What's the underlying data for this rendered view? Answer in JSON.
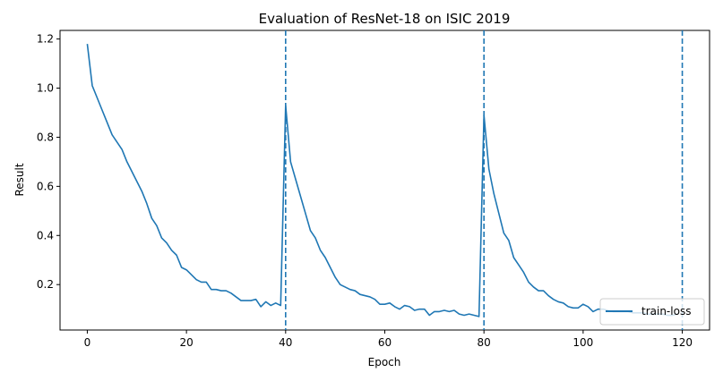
{
  "chart_data": {
    "type": "line",
    "title": "Evaluation of ResNet-18 on ISIC 2019",
    "xlabel": "Epoch",
    "ylabel": "Result",
    "xlim": [
      -5.5,
      125.5
    ],
    "ylim": [
      0.015,
      1.235
    ],
    "xticks": [
      0,
      20,
      40,
      60,
      80,
      100,
      120
    ],
    "yticks": [
      0.2,
      0.4,
      0.6,
      0.8,
      1.0,
      1.2
    ],
    "ytick_labels": [
      "0.2",
      "0.4",
      "0.6",
      "0.8",
      "1.0",
      "1.2"
    ],
    "grid": false,
    "legend_position": "lower-right",
    "vlines": [
      40,
      80,
      120
    ],
    "series": [
      {
        "name": "train-loss",
        "color": "#1f77b4",
        "x": [
          0,
          1,
          2,
          3,
          4,
          5,
          6,
          7,
          8,
          9,
          10,
          11,
          12,
          13,
          14,
          15,
          16,
          17,
          18,
          19,
          20,
          21,
          22,
          23,
          24,
          25,
          26,
          27,
          28,
          29,
          30,
          31,
          32,
          33,
          34,
          35,
          36,
          37,
          38,
          39,
          40,
          41,
          42,
          43,
          44,
          45,
          46,
          47,
          48,
          49,
          50,
          51,
          52,
          53,
          54,
          55,
          56,
          57,
          58,
          59,
          60,
          61,
          62,
          63,
          64,
          65,
          66,
          67,
          68,
          69,
          70,
          71,
          72,
          73,
          74,
          75,
          76,
          77,
          78,
          79,
          80,
          81,
          82,
          83,
          84,
          85,
          86,
          87,
          88,
          89,
          90,
          91,
          92,
          93,
          94,
          95,
          96,
          97,
          98,
          99,
          100,
          101,
          102,
          103,
          104,
          105,
          106,
          107,
          108,
          109,
          110,
          111,
          112,
          113,
          114,
          115,
          116,
          117,
          118,
          119
        ],
        "values": [
          1.18,
          1.01,
          0.96,
          0.91,
          0.86,
          0.81,
          0.78,
          0.75,
          0.7,
          0.66,
          0.62,
          0.58,
          0.53,
          0.47,
          0.44,
          0.39,
          0.37,
          0.34,
          0.32,
          0.27,
          0.26,
          0.24,
          0.22,
          0.21,
          0.21,
          0.18,
          0.18,
          0.175,
          0.175,
          0.165,
          0.15,
          0.135,
          0.135,
          0.135,
          0.14,
          0.11,
          0.13,
          0.115,
          0.125,
          0.115,
          0.93,
          0.7,
          0.63,
          0.56,
          0.49,
          0.42,
          0.39,
          0.34,
          0.31,
          0.27,
          0.23,
          0.2,
          0.19,
          0.18,
          0.175,
          0.16,
          0.155,
          0.15,
          0.14,
          0.12,
          0.12,
          0.125,
          0.11,
          0.1,
          0.115,
          0.11,
          0.095,
          0.1,
          0.1,
          0.075,
          0.09,
          0.09,
          0.095,
          0.09,
          0.095,
          0.08,
          0.075,
          0.08,
          0.075,
          0.07,
          0.89,
          0.67,
          0.57,
          0.49,
          0.41,
          0.38,
          0.31,
          0.28,
          0.25,
          0.21,
          0.19,
          0.175,
          0.175,
          0.155,
          0.14,
          0.13,
          0.125,
          0.11,
          0.105,
          0.105,
          0.12,
          0.11,
          0.09,
          0.1,
          0.1,
          0.095,
          0.09,
          0.09,
          0.09,
          0.09,
          0.085,
          0.085,
          0.085,
          0.08,
          0.08,
          0.08,
          0.08,
          0.075,
          0.075,
          0.08
        ]
      }
    ]
  }
}
